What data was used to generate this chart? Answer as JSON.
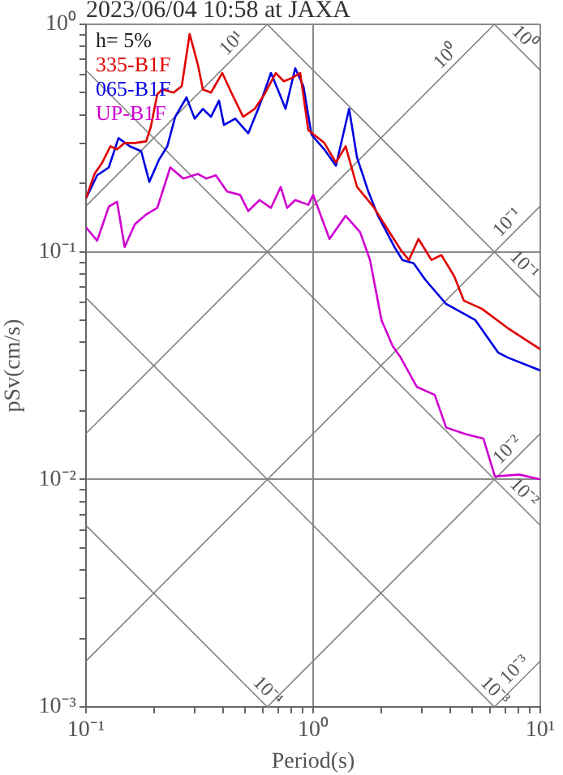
{
  "chart_data": {
    "type": "line",
    "title": "2023/06/04 10:58 at JAXA",
    "xlabel": "Period(s)",
    "ylabel": "pSv(cm/s)",
    "log": "xy",
    "grid": true,
    "legend": "top left",
    "marker": "none",
    "line_style": "solid",
    "xlim": [
      0.1,
      10
    ],
    "ylim": [
      0.001,
      1
    ],
    "xticks": [
      {
        "value": 0.1,
        "label": "10⁻¹"
      },
      {
        "value": 0.2,
        "label": null
      },
      {
        "value": 0.3,
        "label": null
      },
      {
        "value": 0.4,
        "label": null
      },
      {
        "value": 0.5,
        "label": null
      },
      {
        "value": 0.6,
        "label": null
      },
      {
        "value": 0.7,
        "label": null
      },
      {
        "value": 0.8,
        "label": null
      },
      {
        "value": 0.9,
        "label": null
      },
      {
        "value": 1,
        "label": "10⁰"
      },
      {
        "value": 2,
        "label": null
      },
      {
        "value": 3,
        "label": null
      },
      {
        "value": 4,
        "label": null
      },
      {
        "value": 5,
        "label": null
      },
      {
        "value": 6,
        "label": null
      },
      {
        "value": 7,
        "label": null
      },
      {
        "value": 8,
        "label": null
      },
      {
        "value": 9,
        "label": null
      },
      {
        "value": 10,
        "label": "10¹"
      }
    ],
    "yticks": [
      {
        "value": 0.001,
        "label": "10⁻³"
      },
      {
        "value": 0.002,
        "label": null
      },
      {
        "value": 0.003,
        "label": null
      },
      {
        "value": 0.004,
        "label": null
      },
      {
        "value": 0.005,
        "label": null
      },
      {
        "value": 0.006,
        "label": null
      },
      {
        "value": 0.007,
        "label": null
      },
      {
        "value": 0.008,
        "label": null
      },
      {
        "value": 0.009,
        "label": null
      },
      {
        "value": 0.01,
        "label": "10⁻²"
      },
      {
        "value": 0.02,
        "label": null
      },
      {
        "value": 0.03,
        "label": null
      },
      {
        "value": 0.04,
        "label": null
      },
      {
        "value": 0.05,
        "label": null
      },
      {
        "value": 0.06,
        "label": null
      },
      {
        "value": 0.07,
        "label": null
      },
      {
        "value": 0.08,
        "label": null
      },
      {
        "value": 0.09,
        "label": null
      },
      {
        "value": 0.1,
        "label": "10⁻¹"
      },
      {
        "value": 0.2,
        "label": null
      },
      {
        "value": 0.3,
        "label": null
      },
      {
        "value": 0.4,
        "label": null
      },
      {
        "value": 0.5,
        "label": null
      },
      {
        "value": 0.6,
        "label": null
      },
      {
        "value": 0.7,
        "label": null
      },
      {
        "value": 0.8,
        "label": null
      },
      {
        "value": 0.9,
        "label": null
      },
      {
        "value": 1,
        "label": "10⁰"
      }
    ],
    "annotations": [
      "h= 5%",
      {
        "text": "10¹",
        "x": 0.477,
        "y": 0.76
      },
      {
        "text": "10⁰",
        "x": 4.18,
        "y": 0.665
      },
      {
        "text": "10⁻¹",
        "x": 7.8,
        "y": 0.124
      },
      {
        "text": "10⁻²",
        "x": 7.8,
        "y": 0.0124
      },
      {
        "text": "10⁻³",
        "x": 8.4,
        "y": 0.00134
      },
      {
        "text": "10⁰",
        "x": 7.8,
        "y": 0.805
      },
      {
        "text": "10⁻¹",
        "x": 7.8,
        "y": 0.0805
      },
      {
        "text": "10⁻²",
        "x": 7.8,
        "y": 0.00805
      },
      {
        "text": "10⁻³",
        "x": 5.8,
        "y": 0.00108
      },
      {
        "text": "10⁻⁴",
        "x": 0.58,
        "y": 0.00108
      }
    ],
    "series": [
      {
        "color": "#808080",
        "x": [
          0.1,
          0.628
        ],
        "values": [
          0.159,
          1
        ]
      },
      {
        "color": "#808080",
        "x": [
          0.1,
          6.28
        ],
        "values": [
          0.0159,
          1
        ]
      },
      {
        "color": "#808080",
        "x": [
          0.1,
          10
        ],
        "values": [
          0.00159,
          0.159
        ]
      },
      {
        "color": "#808080",
        "x": [
          0.628,
          10
        ],
        "values": [
          0.001,
          0.0159
        ]
      },
      {
        "color": "#808080",
        "x": [
          6.28,
          10
        ],
        "values": [
          0.001,
          0.00159
        ]
      },
      {
        "color": "#808080",
        "x": [
          6.28,
          10
        ],
        "values": [
          1,
          0.628
        ]
      },
      {
        "color": "#808080",
        "x": [
          0.628,
          10
        ],
        "values": [
          1,
          0.0628
        ]
      },
      {
        "color": "#808080",
        "x": [
          0.1,
          10
        ],
        "values": [
          0.628,
          0.00628
        ]
      },
      {
        "color": "#808080",
        "x": [
          0.1,
          6.28
        ],
        "values": [
          0.0628,
          0.001
        ]
      },
      {
        "color": "#808080",
        "x": [
          0.1,
          0.628
        ],
        "values": [
          0.00628,
          0.001
        ]
      },
      {
        "name": "335-B1F",
        "color": "#e00000",
        "x": [
          0.1,
          0.109,
          0.118,
          0.128,
          0.137,
          0.148,
          0.164,
          0.184,
          0.193,
          0.206,
          0.217,
          0.243,
          0.264,
          0.286,
          0.311,
          0.327,
          0.355,
          0.398,
          0.44,
          0.492,
          0.553,
          0.611,
          0.685,
          0.743,
          0.807,
          0.877,
          0.952,
          1.12,
          1.26,
          1.39,
          1.56,
          1.84,
          2.17,
          2.43,
          2.64,
          2.91,
          3.32,
          3.67,
          4.18,
          4.61,
          5.53,
          7.2,
          10
        ],
        "values": [
          0.172,
          0.22,
          0.247,
          0.291,
          0.282,
          0.301,
          0.301,
          0.306,
          0.355,
          0.493,
          0.518,
          0.501,
          0.535,
          0.906,
          0.663,
          0.518,
          0.501,
          0.611,
          0.493,
          0.392,
          0.425,
          0.493,
          0.611,
          0.562,
          0.581,
          0.611,
          0.343,
          0.301,
          0.247,
          0.291,
          0.193,
          0.158,
          0.122,
          0.102,
          0.0921,
          0.114,
          0.0921,
          0.0968,
          0.0781,
          0.061,
          0.0562,
          0.0462,
          0.0373
        ]
      },
      {
        "name": "065-B1F",
        "color": "#0000e0",
        "x": [
          0.1,
          0.112,
          0.126,
          0.139,
          0.156,
          0.175,
          0.19,
          0.21,
          0.228,
          0.247,
          0.277,
          0.301,
          0.327,
          0.355,
          0.385,
          0.405,
          0.454,
          0.518,
          0.581,
          0.652,
          0.708,
          0.756,
          0.834,
          0.906,
          0.984,
          1.12,
          1.26,
          1.44,
          1.56,
          1.75,
          1.93,
          2.28,
          2.47,
          2.77,
          3.11,
          3.85,
          5.18,
          6.52,
          7.2,
          10
        ],
        "values": [
          0.172,
          0.217,
          0.235,
          0.316,
          0.291,
          0.277,
          0.203,
          0.255,
          0.291,
          0.392,
          0.477,
          0.385,
          0.425,
          0.392,
          0.462,
          0.361,
          0.385,
          0.332,
          0.44,
          0.611,
          0.501,
          0.425,
          0.641,
          0.535,
          0.327,
          0.282,
          0.239,
          0.425,
          0.26,
          0.184,
          0.144,
          0.105,
          0.0921,
          0.0891,
          0.0756,
          0.059,
          0.0501,
          0.0361,
          0.0343,
          0.0301
        ]
      },
      {
        "name": "UP-B1F",
        "color": "#d000d0",
        "x": [
          0.1,
          0.112,
          0.126,
          0.137,
          0.148,
          0.164,
          0.184,
          0.206,
          0.235,
          0.268,
          0.311,
          0.338,
          0.373,
          0.418,
          0.477,
          0.518,
          0.581,
          0.652,
          0.72,
          0.768,
          0.834,
          0.952,
          1.0,
          1.18,
          1.39,
          1.61,
          1.78,
          2.0,
          2.24,
          2.43,
          2.86,
          3.43,
          3.85,
          4.69,
          5.62,
          6.31,
          8.07,
          10
        ],
        "values": [
          0.128,
          0.112,
          0.158,
          0.166,
          0.105,
          0.132,
          0.146,
          0.156,
          0.235,
          0.21,
          0.22,
          0.21,
          0.217,
          0.184,
          0.178,
          0.151,
          0.169,
          0.156,
          0.193,
          0.156,
          0.169,
          0.161,
          0.178,
          0.114,
          0.144,
          0.122,
          0.0921,
          0.0501,
          0.0385,
          0.0343,
          0.0255,
          0.0235,
          0.0169,
          0.0158,
          0.0151,
          0.0103,
          0.0105,
          0.01
        ]
      }
    ]
  }
}
